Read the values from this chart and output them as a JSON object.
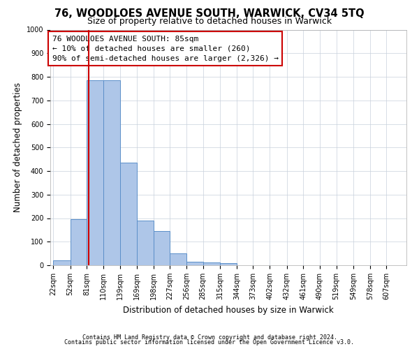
{
  "title1": "76, WOODLOES AVENUE SOUTH, WARWICK, CV34 5TQ",
  "title2": "Size of property relative to detached houses in Warwick",
  "xlabel": "Distribution of detached houses by size in Warwick",
  "ylabel": "Number of detached properties",
  "bin_edges": [
    22,
    52,
    81,
    110,
    139,
    169,
    198,
    227,
    256,
    285,
    315,
    344,
    373,
    402,
    432,
    461,
    490,
    519,
    549,
    578,
    607
  ],
  "bar_heights": [
    20,
    195,
    785,
    785,
    435,
    190,
    145,
    50,
    15,
    12,
    10,
    0,
    0,
    0,
    0,
    0,
    0,
    0,
    0,
    0
  ],
  "bar_color": "#aec6e8",
  "bar_edge_color": "#5b8fc9",
  "property_size": 85,
  "red_line_color": "#cc0000",
  "annotation_line1": "76 WOODLOES AVENUE SOUTH: 85sqm",
  "annotation_line2": "← 10% of detached houses are smaller (260)",
  "annotation_line3": "90% of semi-detached houses are larger (2,326) →",
  "annotation_box_color": "#ffffff",
  "annotation_box_edge_color": "#cc0000",
  "ylim": [
    0,
    1000
  ],
  "yticks": [
    0,
    100,
    200,
    300,
    400,
    500,
    600,
    700,
    800,
    900,
    1000
  ],
  "footer1": "Contains HM Land Registry data © Crown copyright and database right 2024.",
  "footer2": "Contains public sector information licensed under the Open Government Licence v3.0.",
  "bg_color": "#ffffff",
  "grid_color": "#c8d0dc",
  "title1_fontsize": 10.5,
  "title2_fontsize": 9,
  "annot_fontsize": 8,
  "tick_fontsize": 7,
  "ylabel_fontsize": 8.5,
  "xlabel_fontsize": 8.5,
  "footer_fontsize": 6
}
